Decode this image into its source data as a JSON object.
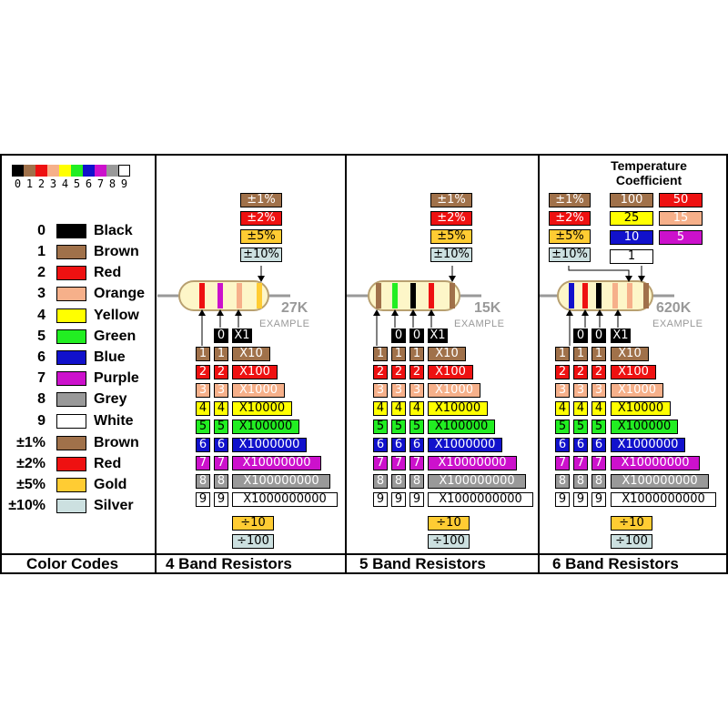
{
  "colors": {
    "black": "#000000",
    "brown": "#a0714a",
    "red": "#ee1111",
    "orange": "#f6b08a",
    "yellow": "#ffff00",
    "green": "#22ee22",
    "blue": "#1111cc",
    "purple": "#cc11cc",
    "grey": "#999999",
    "white": "#ffffff",
    "gold": "#ffcc33",
    "silver": "#cce0e0"
  },
  "strip_digits": [
    "0",
    "1",
    "2",
    "3",
    "4",
    "5",
    "6",
    "7",
    "8",
    "9"
  ],
  "legend": [
    {
      "num": "0",
      "name": "Black",
      "color": "black"
    },
    {
      "num": "1",
      "name": "Brown",
      "color": "brown"
    },
    {
      "num": "2",
      "name": "Red",
      "color": "red"
    },
    {
      "num": "3",
      "name": "Orange",
      "color": "orange"
    },
    {
      "num": "4",
      "name": "Yellow",
      "color": "yellow"
    },
    {
      "num": "5",
      "name": "Green",
      "color": "green"
    },
    {
      "num": "6",
      "name": "Blue",
      "color": "blue"
    },
    {
      "num": "7",
      "name": "Purple",
      "color": "purple"
    },
    {
      "num": "8",
      "name": "Grey",
      "color": "grey"
    },
    {
      "num": "9",
      "name": "White",
      "color": "white"
    },
    {
      "num": "±1%",
      "name": "Brown",
      "color": "brown"
    },
    {
      "num": "±2%",
      "name": "Red",
      "color": "red"
    },
    {
      "num": "±5%",
      "name": "Gold",
      "color": "gold"
    },
    {
      "num": "±10%",
      "name": "Silver",
      "color": "silver"
    }
  ],
  "multipliers": [
    "X1",
    "X10",
    "X100",
    "X1000",
    "X10000",
    "X100000",
    "X1000000",
    "X10000000",
    "X100000000",
    "X1000000000"
  ],
  "divisors": [
    "÷10",
    "÷100"
  ],
  "tolerances": [
    {
      "text": "±1%",
      "color": "brown"
    },
    {
      "text": "±2%",
      "color": "red"
    },
    {
      "text": "±5%",
      "color": "gold"
    },
    {
      "text": "±10%",
      "color": "silver"
    }
  ],
  "temp_coeff": {
    "title_line1": "Temperature",
    "title_line2": "Coefficient",
    "values": [
      {
        "text": "100",
        "color": "brown"
      },
      {
        "text": "50",
        "color": "red"
      },
      {
        "text": "25",
        "color": "yellow"
      },
      {
        "text": "15",
        "color": "orange"
      },
      {
        "text": "10",
        "color": "blue"
      },
      {
        "text": "5",
        "color": "purple"
      },
      {
        "text": "1",
        "color": "white"
      }
    ]
  },
  "panels": {
    "color_codes": {
      "title": "Color Codes"
    },
    "band4": {
      "title": "4 Band Resistors",
      "example_value": "27K",
      "example_label": "EXAMPLE"
    },
    "band5": {
      "title": "5 Band Resistors",
      "example_value": "15K",
      "example_label": "EXAMPLE"
    },
    "band6": {
      "title": "6 Band Resistors",
      "example_value": "620K",
      "example_label": "EXAMPLE"
    }
  }
}
